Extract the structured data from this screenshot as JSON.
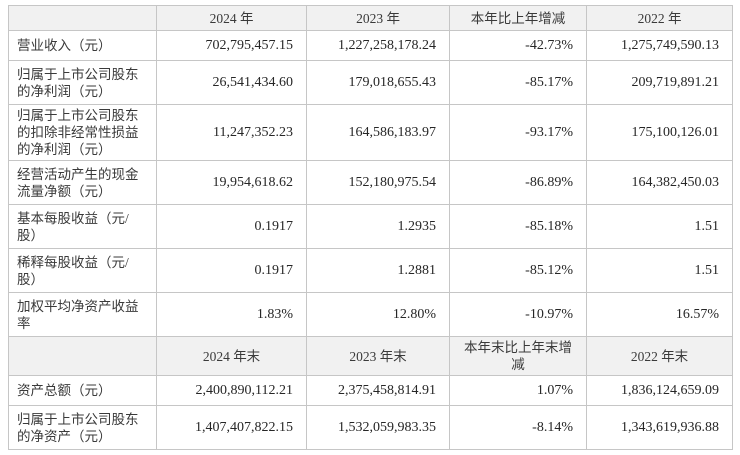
{
  "table": {
    "annual_header": [
      "2024 年",
      "2023 年",
      "本年比上年增减",
      "2022 年"
    ],
    "annual_rows": [
      {
        "label": "营业收入（元）",
        "v": [
          "702,795,457.15",
          "1,227,258,178.24",
          "-42.73%",
          "1,275,749,590.13"
        ]
      },
      {
        "label": "归属于上市公司股东的净利润（元）",
        "v": [
          "26,541,434.60",
          "179,018,655.43",
          "-85.17%",
          "209,719,891.21"
        ]
      },
      {
        "label": "归属于上市公司股东的扣除非经常性损益的净利润（元）",
        "v": [
          "11,247,352.23",
          "164,586,183.97",
          "-93.17%",
          "175,100,126.01"
        ]
      },
      {
        "label": "经营活动产生的现金流量净额（元）",
        "v": [
          "19,954,618.62",
          "152,180,975.54",
          "-86.89%",
          "164,382,450.03"
        ]
      },
      {
        "label": "基本每股收益（元/股）",
        "v": [
          "0.1917",
          "1.2935",
          "-85.18%",
          "1.51"
        ]
      },
      {
        "label": "稀释每股收益（元/股）",
        "v": [
          "0.1917",
          "1.2881",
          "-85.12%",
          "1.51"
        ]
      },
      {
        "label": "加权平均净资产收益率",
        "v": [
          "1.83%",
          "12.80%",
          "-10.97%",
          "16.57%"
        ]
      }
    ],
    "period_end_header": [
      "2024 年末",
      "2023 年末",
      "本年末比上年末增减",
      "2022 年末"
    ],
    "period_end_rows": [
      {
        "label": "资产总额（元）",
        "v": [
          "2,400,890,112.21",
          "2,375,458,814.91",
          "1.07%",
          "1,836,124,659.09"
        ]
      },
      {
        "label": "归属于上市公司股东的净资产（元）",
        "v": [
          "1,407,407,822.15",
          "1,532,059,983.35",
          "-8.14%",
          "1,343,619,936.88"
        ]
      }
    ]
  }
}
